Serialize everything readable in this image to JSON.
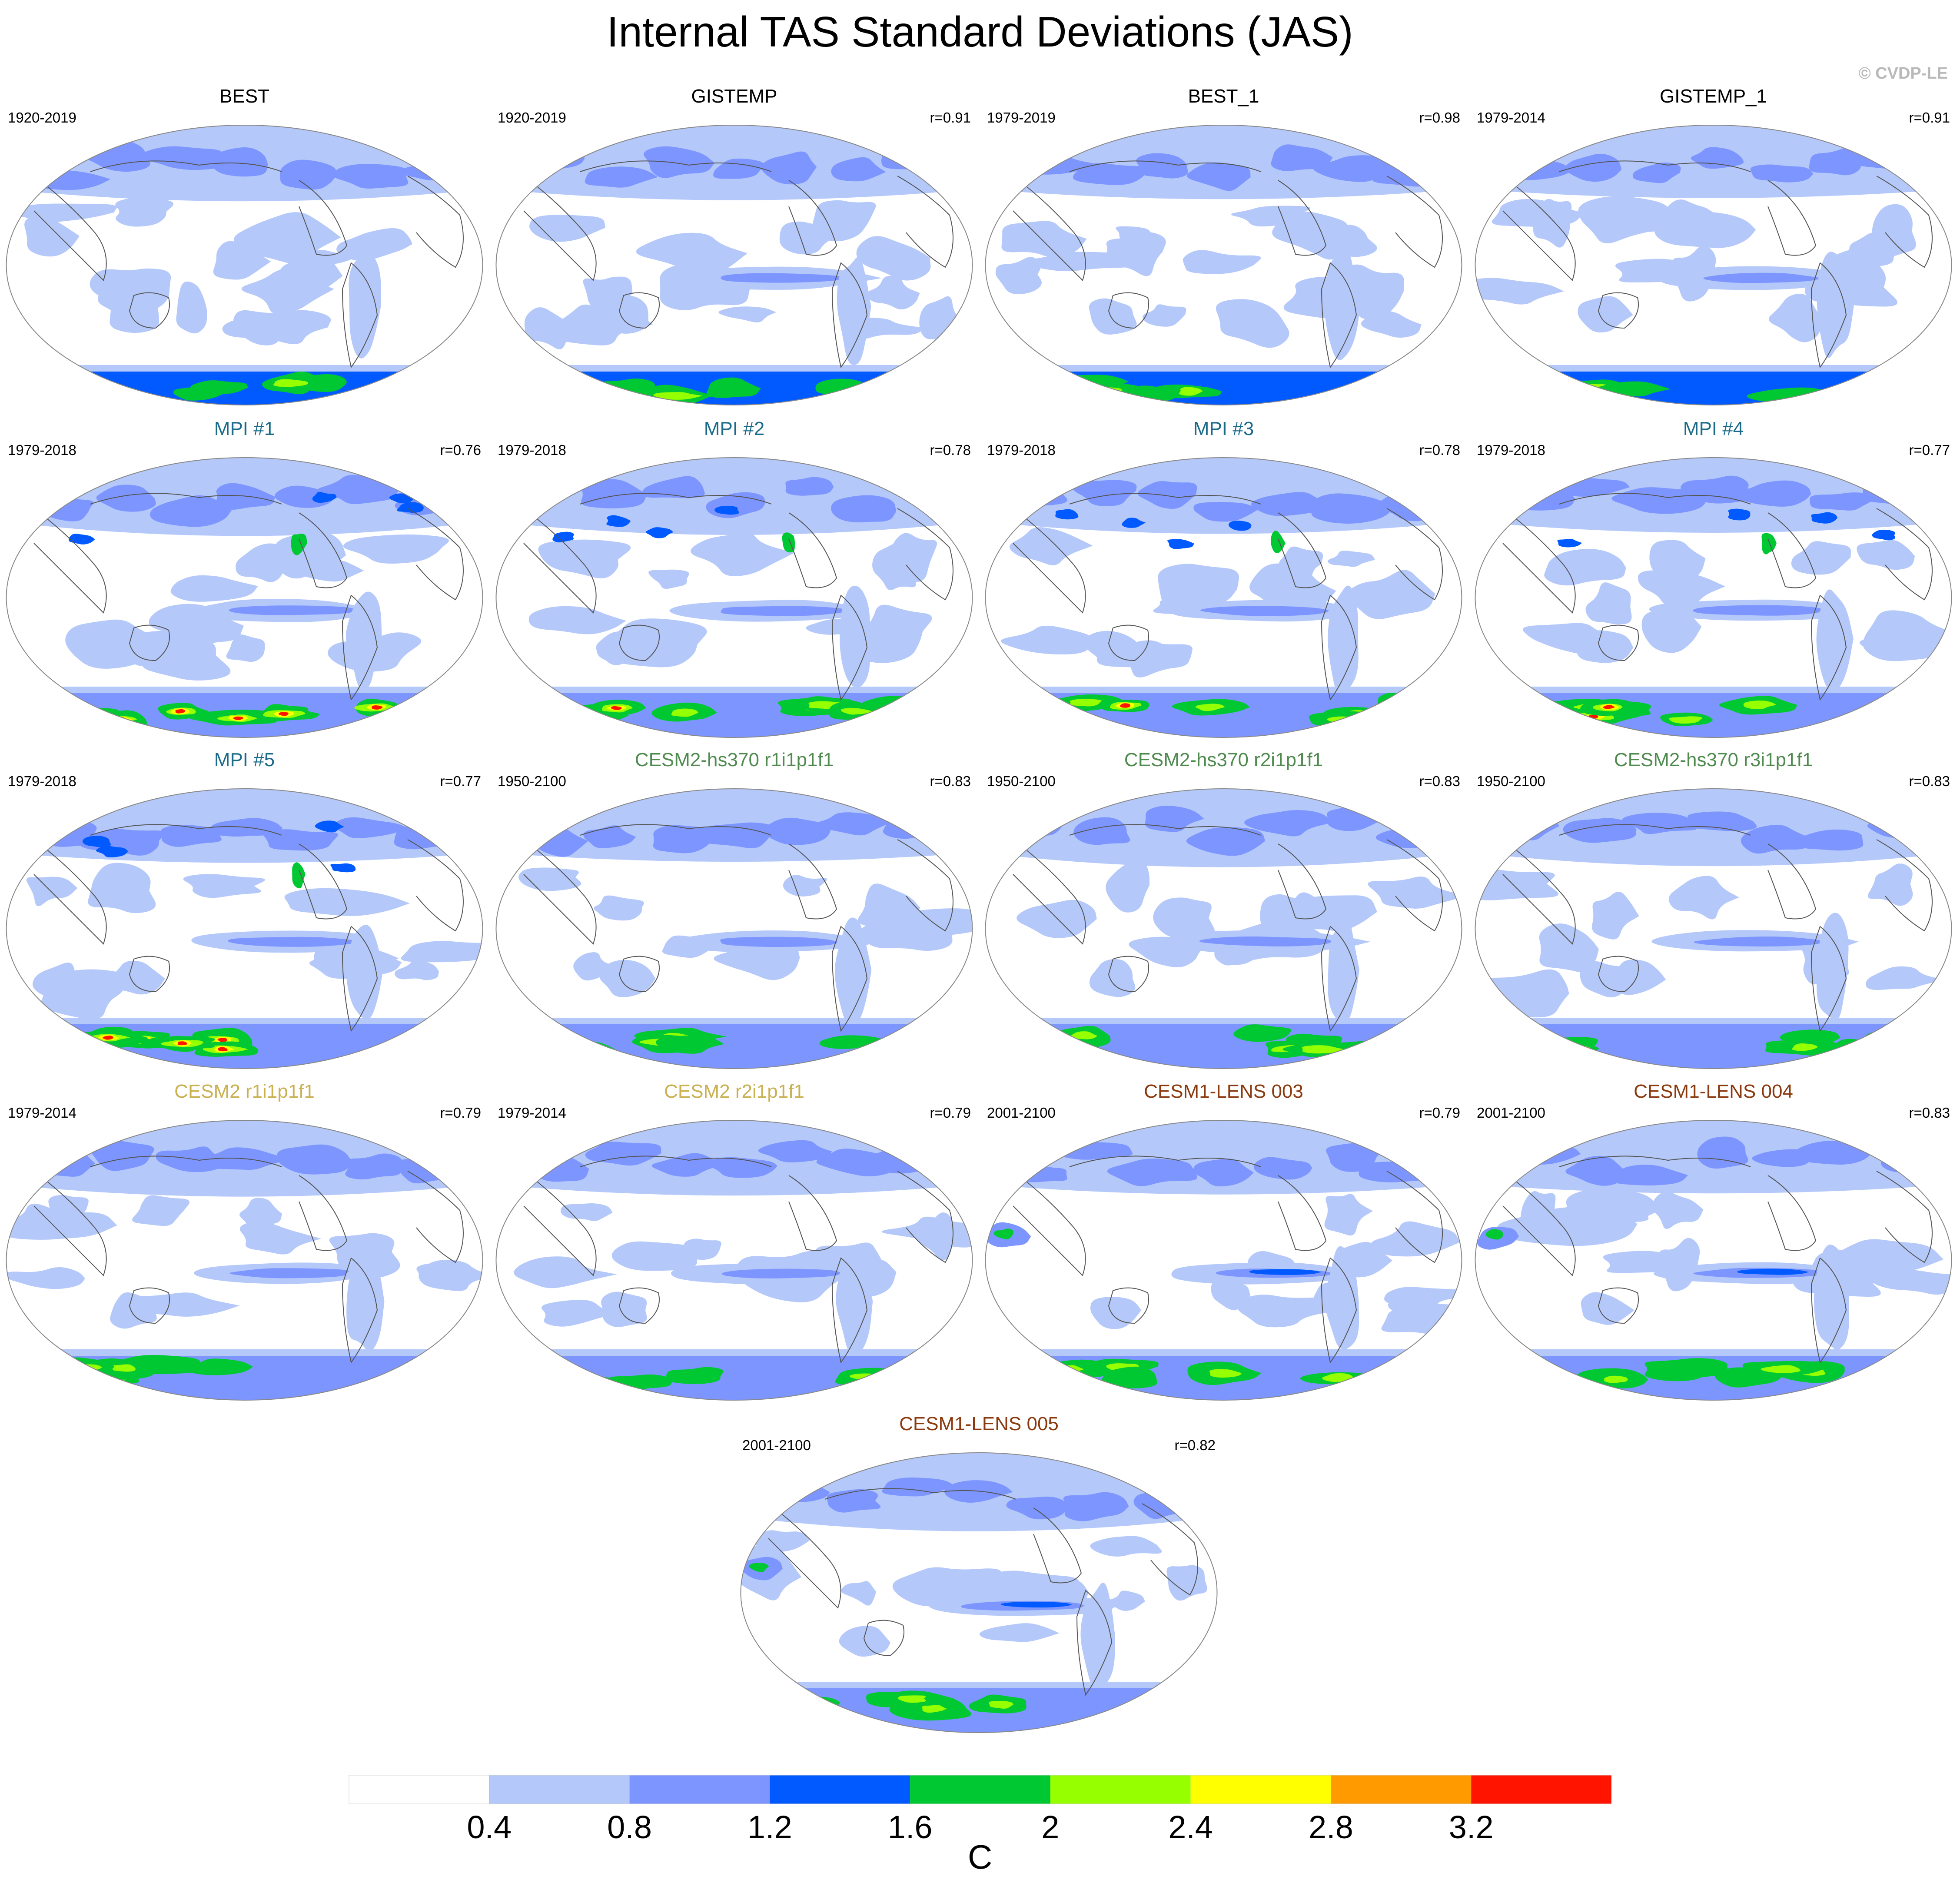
{
  "title": "Internal TAS Standard Deviations (JAS)",
  "copyright": "© CVDP-LE",
  "colorbar": {
    "colors": [
      "#ffffff",
      "#b4c8fa",
      "#7d96ff",
      "#005aff",
      "#00c832",
      "#96ff00",
      "#ffff00",
      "#ff9b00",
      "#ff1400"
    ],
    "labels": [
      "0.4",
      "0.8",
      "1.2",
      "1.6",
      "2",
      "2.4",
      "2.8",
      "3.2"
    ],
    "unit": "C"
  },
  "panels": [
    {
      "name": "BEST",
      "color": "#000000",
      "period": "1920-2019",
      "corr": "",
      "pattern": "obs",
      "seed": 1
    },
    {
      "name": "GISTEMP",
      "color": "#000000",
      "period": "1920-2019",
      "corr": "r=0.91",
      "pattern": "obs2",
      "seed": 2
    },
    {
      "name": "BEST_1",
      "color": "#000000",
      "period": "1979-2019",
      "corr": "r=0.98",
      "pattern": "obs",
      "seed": 3
    },
    {
      "name": "GISTEMP_1",
      "color": "#000000",
      "period": "1979-2014",
      "corr": "r=0.91",
      "pattern": "obs2",
      "seed": 4
    },
    {
      "name": "MPI #1",
      "color": "#1a6a8a",
      "period": "1979-2018",
      "corr": "r=0.76",
      "pattern": "mpi",
      "seed": 5
    },
    {
      "name": "MPI #2",
      "color": "#1a6a8a",
      "period": "1979-2018",
      "corr": "r=0.78",
      "pattern": "mpi",
      "seed": 6
    },
    {
      "name": "MPI #3",
      "color": "#1a6a8a",
      "period": "1979-2018",
      "corr": "r=0.78",
      "pattern": "mpi",
      "seed": 7
    },
    {
      "name": "MPI #4",
      "color": "#1a6a8a",
      "period": "1979-2018",
      "corr": "r=0.77",
      "pattern": "mpi",
      "seed": 8
    },
    {
      "name": "MPI #5",
      "color": "#1a6a8a",
      "period": "1979-2018",
      "corr": "r=0.77",
      "pattern": "mpi",
      "seed": 9
    },
    {
      "name": "CESM2-hs370 r1i1p1f1",
      "color": "#4f8a4f",
      "period": "1950-2100",
      "corr": "r=0.83",
      "pattern": "cesm",
      "seed": 10
    },
    {
      "name": "CESM2-hs370 r2i1p1f1",
      "color": "#4f8a4f",
      "period": "1950-2100",
      "corr": "r=0.83",
      "pattern": "cesm",
      "seed": 11
    },
    {
      "name": "CESM2-hs370 r3i1p1f1",
      "color": "#4f8a4f",
      "period": "1950-2100",
      "corr": "r=0.83",
      "pattern": "cesm",
      "seed": 12
    },
    {
      "name": "CESM2 r1i1p1f1",
      "color": "#c9b050",
      "period": "1979-2014",
      "corr": "r=0.79",
      "pattern": "cesm2",
      "seed": 13
    },
    {
      "name": "CESM2 r2i1p1f1",
      "color": "#c9b050",
      "period": "1979-2014",
      "corr": "r=0.79",
      "pattern": "cesm2",
      "seed": 14
    },
    {
      "name": "CESM1-LENS 003",
      "color": "#8b3a0f",
      "period": "2001-2100",
      "corr": "r=0.79",
      "pattern": "lens",
      "seed": 15
    },
    {
      "name": "CESM1-LENS 004",
      "color": "#8b3a0f",
      "period": "2001-2100",
      "corr": "r=0.83",
      "pattern": "lens",
      "seed": 16
    },
    {
      "name": "CESM1-LENS 005",
      "color": "#8b3a0f",
      "period": "2001-2100",
      "corr": "r=0.82",
      "pattern": "lens",
      "seed": 17
    }
  ]
}
